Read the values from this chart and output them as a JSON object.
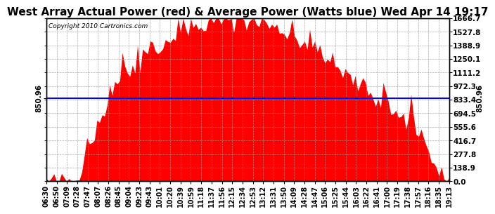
{
  "title": "West Array Actual Power (red) & Average Power (Watts blue) Wed Apr 14 19:17",
  "copyright": "Copyright 2010 Cartronics.com",
  "average_power": 850.96,
  "y_ticks": [
    0.0,
    138.9,
    277.8,
    416.7,
    555.6,
    694.5,
    833.4,
    972.3,
    1111.2,
    1250.1,
    1388.9,
    1527.8,
    1666.7
  ],
  "ylim": [
    0,
    1666.7
  ],
  "avg_label": "850.96",
  "fill_color": "#FF0000",
  "avg_line_color": "#0000FF",
  "background_color": "#FFFFFF",
  "grid_color": "#999999",
  "x_labels": [
    "06:30",
    "06:50",
    "07:09",
    "07:28",
    "07:47",
    "08:07",
    "08:26",
    "08:45",
    "09:04",
    "09:23",
    "09:43",
    "10:01",
    "10:20",
    "10:39",
    "10:59",
    "11:18",
    "11:37",
    "11:56",
    "12:15",
    "12:34",
    "12:53",
    "13:12",
    "13:31",
    "13:50",
    "14:09",
    "14:28",
    "14:47",
    "15:06",
    "15:25",
    "15:44",
    "16:03",
    "16:22",
    "16:41",
    "17:00",
    "17:19",
    "17:38",
    "17:57",
    "18:16",
    "18:35",
    "19:13"
  ],
  "title_fontsize": 11,
  "tick_fontsize": 7.5,
  "copyright_fontsize": 6.5
}
